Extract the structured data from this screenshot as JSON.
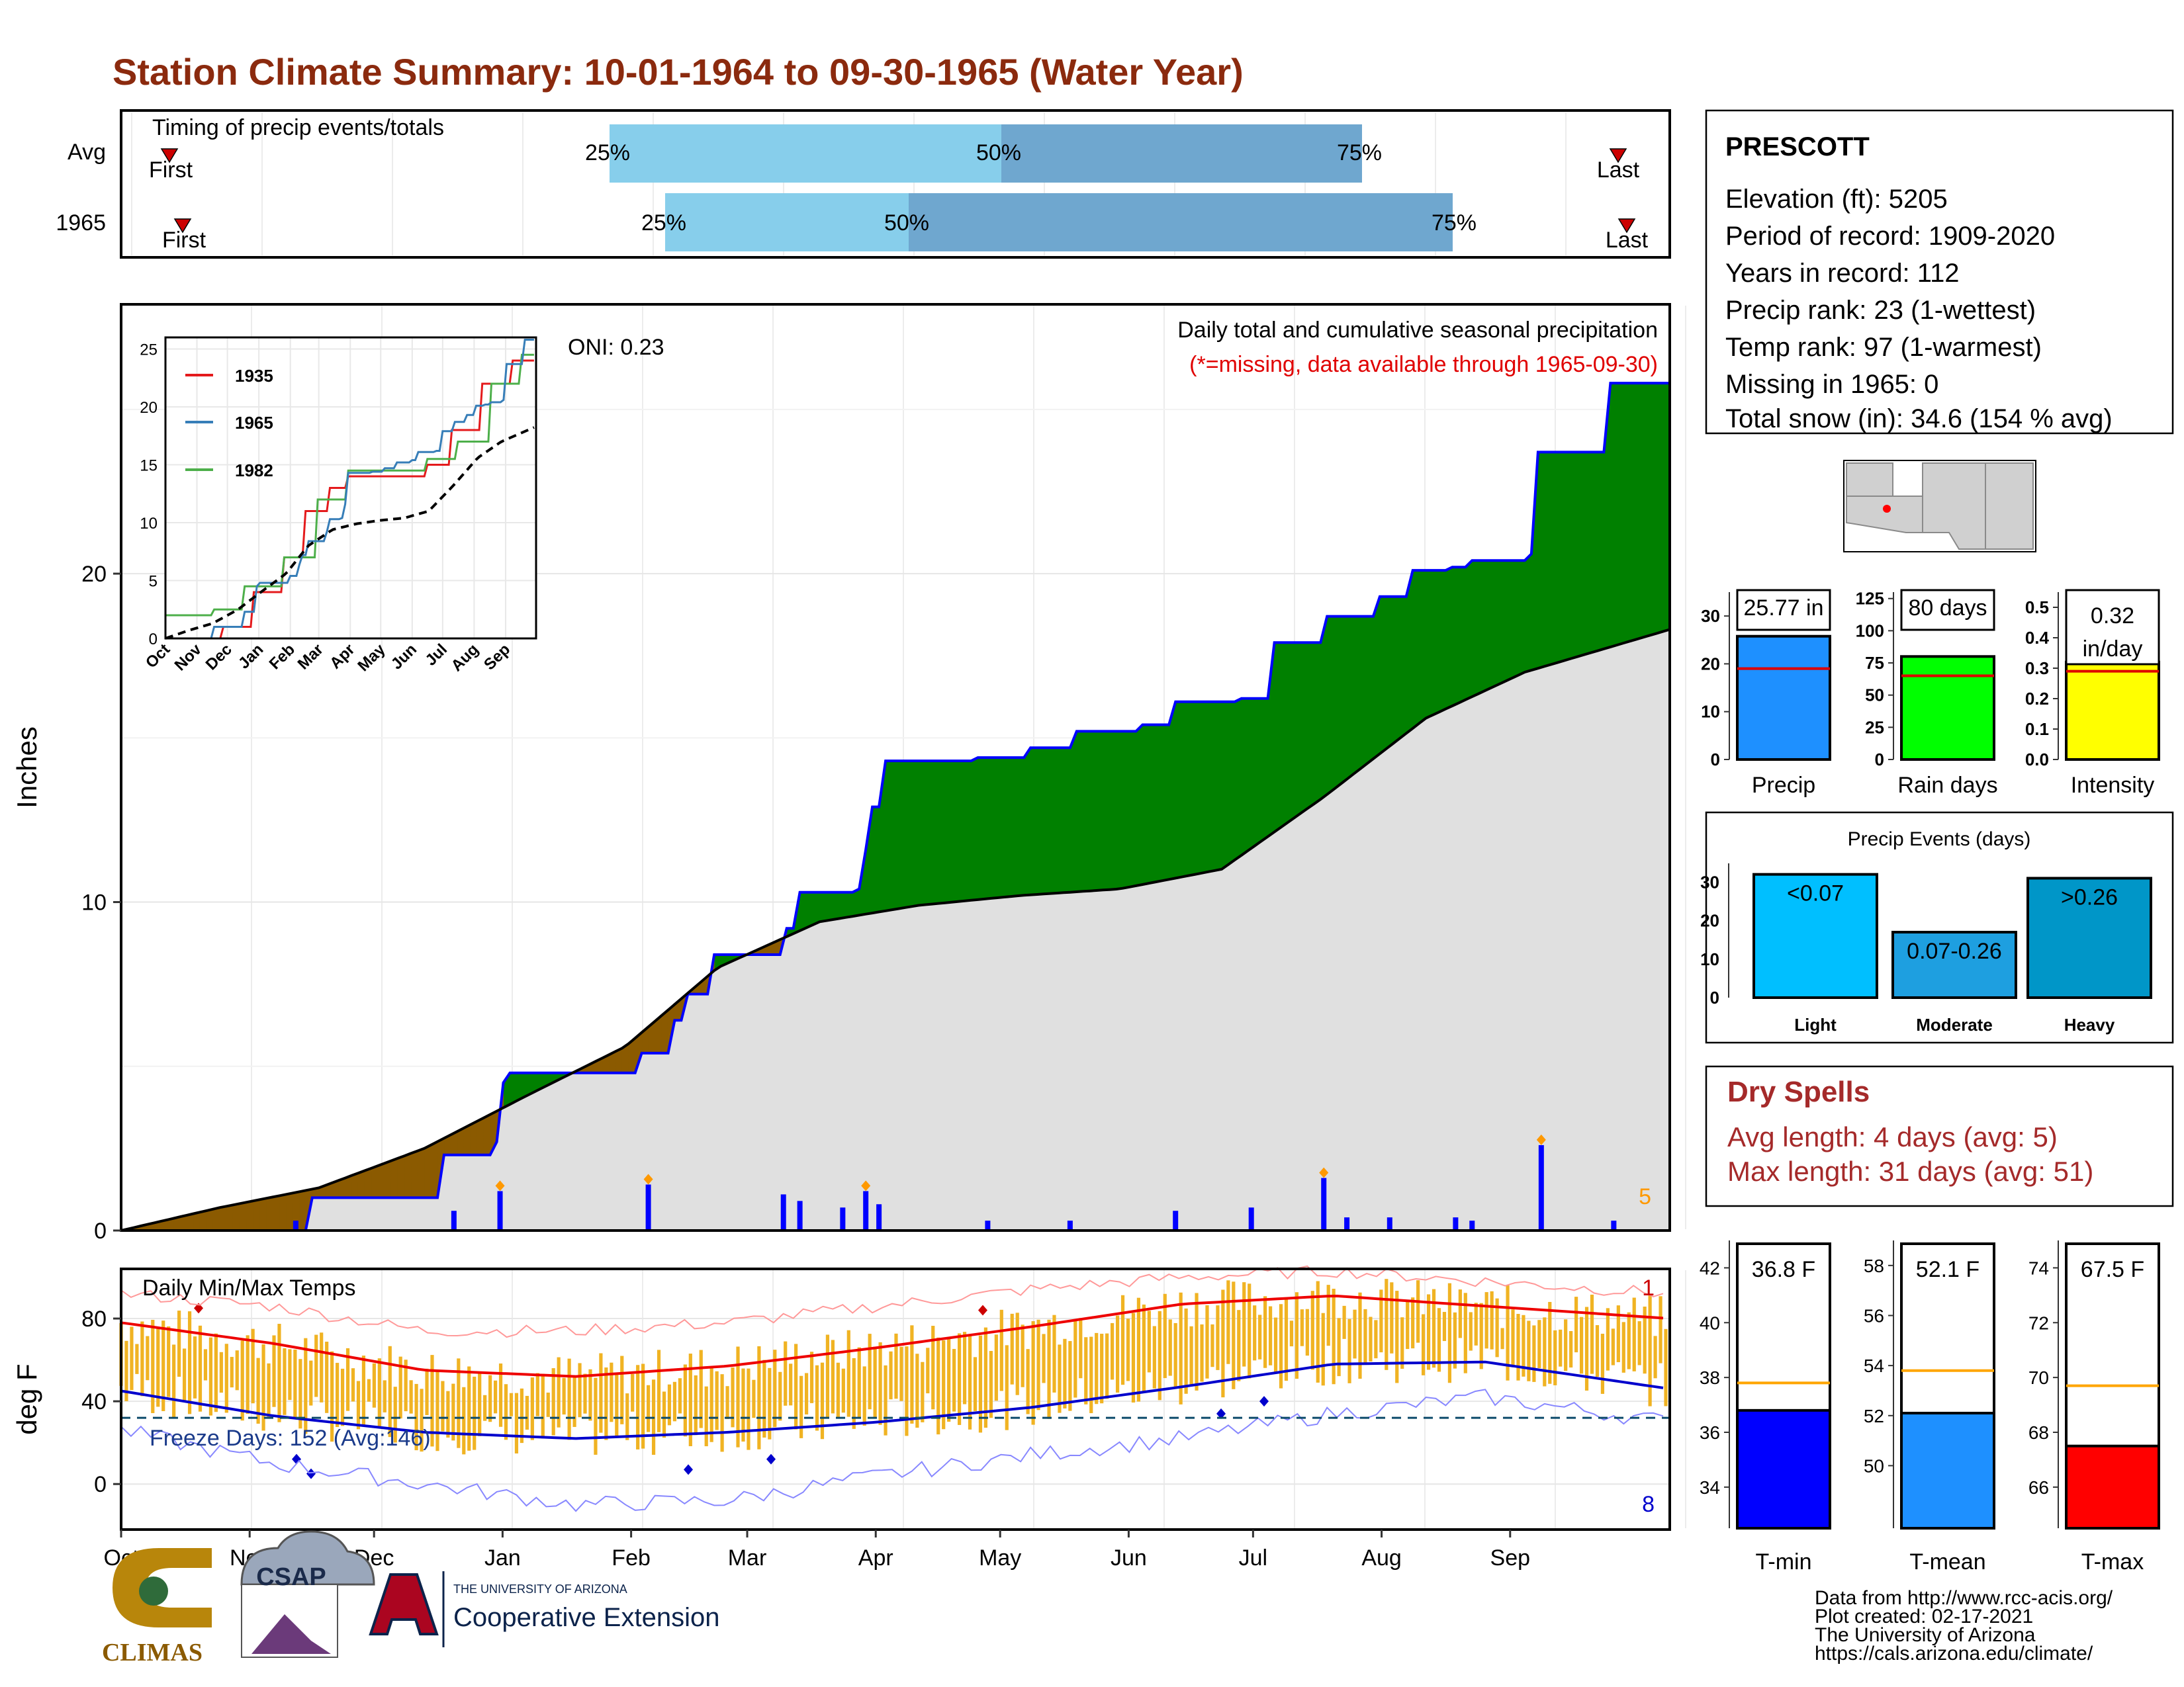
{
  "title": "Station Climate Summary: 10-01-1964 to 09-30-1965 (Water Year)",
  "timing": {
    "label": "Timing of precip events/totals",
    "rows": [
      {
        "name": "Avg",
        "first_label": "First",
        "last_label": "Last",
        "p25": "25%",
        "p50": "50%",
        "p75": "75%"
      },
      {
        "name": "1965",
        "first_label": "First",
        "last_label": "Last",
        "p25": "25%",
        "p50": "50%",
        "p75": "75%"
      }
    ],
    "colors": {
      "light": "#87ceeb",
      "dark": "#6fa7cf",
      "marker": "#cc0000"
    }
  },
  "precip_panel": {
    "ylabel": "Inches",
    "oni": "ONI: 0.23",
    "note1": "Daily total and cumulative seasonal precipitation",
    "note2": "(*=missing, data available through 1965-09-30)",
    "count_label": "5",
    "ytick_labels": [
      "0",
      "10",
      "20"
    ],
    "colors": {
      "above": "#008000",
      "below": "#8b5a00",
      "avg_fill": "#e0e0e0",
      "line": "#0000ff"
    }
  },
  "inset": {
    "ytick_labels": [
      "0",
      "5",
      "10",
      "15",
      "20",
      "25"
    ],
    "xtick_labels": [
      "Oct",
      "Nov",
      "Dec",
      "Jan",
      "Feb",
      "Mar",
      "Apr",
      "May",
      "Jun",
      "Jul",
      "Aug",
      "Sep"
    ],
    "legend": [
      {
        "name": "1935",
        "color": "#e41a1c"
      },
      {
        "name": "1965",
        "color": "#377eb8"
      },
      {
        "name": "1982",
        "color": "#4daf4a"
      }
    ]
  },
  "temp_panel": {
    "ylabel": "deg F",
    "label": "Daily Min/Max Temps",
    "freeze_label": "Freeze Days: 152 (Avg:146)",
    "record_high_count": "1",
    "record_low_count": "8",
    "ytick_labels": [
      "0",
      "40",
      "80"
    ],
    "xtick_labels": [
      "Oct",
      "Nov",
      "Dec",
      "Jan",
      "Feb",
      "Mar",
      "Apr",
      "May",
      "Jun",
      "Jul",
      "Aug",
      "Sep"
    ]
  },
  "station": {
    "name": "PRESCOTT",
    "lines": [
      "Elevation (ft): 5205",
      "Period of record: 1909-2020",
      "Years in record: 112",
      "Precip rank: 23 (1-wettest)",
      "Temp rank: 97 (1-warmest)",
      "Missing in 1965: 0",
      "Total snow (in): 34.6 (154 % avg)"
    ]
  },
  "summary_bars": [
    {
      "label": "Precip",
      "value_label": "25.77 in",
      "value": 25.77,
      "avg": 19,
      "ymax": 35,
      "ticks": [
        "0",
        "10",
        "20",
        "30"
      ],
      "color": "#1e90ff"
    },
    {
      "label": "Rain days",
      "value_label": "80 days",
      "value": 80,
      "avg": 65,
      "ymax": 130,
      "ticks": [
        "0",
        "25",
        "50",
        "75",
        "100",
        "125"
      ],
      "color": "#00ff00"
    },
    {
      "label": "Intensity",
      "value_label": "0.32 in/day",
      "value": 0.32,
      "avg": 0.29,
      "ymax": 0.55,
      "ticks": [
        "0.0",
        "0.1",
        "0.2",
        "0.3",
        "0.4",
        "0.5"
      ],
      "color": "#ffff00"
    }
  ],
  "events": {
    "title": "Precip Events (days)",
    "ticks": [
      "0",
      "10",
      "20",
      "30"
    ],
    "bars": [
      {
        "name": "Light",
        "label": "<0.07",
        "value": 32,
        "color": "#00bfff"
      },
      {
        "name": "Moderate",
        "label": "0.07-0.26",
        "value": 17,
        "color": "#1e9fe0"
      },
      {
        "name": "Heavy",
        "label": ">0.26",
        "value": 31,
        "color": "#0096c8"
      }
    ]
  },
  "dry_spells": {
    "title": "Dry Spells",
    "line1": "Avg length: 4 days (avg: 5)",
    "line2": "Max length: 31 days (avg: 51)"
  },
  "temp_bars": [
    {
      "label": "T-min",
      "value_label": "36.8 F",
      "value": 36.8,
      "avg": 37.8,
      "ymin": 32.5,
      "ymax": 43,
      "ticks": [
        "34",
        "36",
        "38",
        "40",
        "42"
      ],
      "color": "#0000ff"
    },
    {
      "label": "T-mean",
      "value_label": "52.1 F",
      "value": 52.1,
      "avg": 53.8,
      "ymin": 47.5,
      "ymax": 59,
      "ticks": [
        "50",
        "52",
        "54",
        "56",
        "58"
      ],
      "color": "#1e90ff"
    },
    {
      "label": "T-max",
      "value_label": "67.5 F",
      "value": 67.5,
      "avg": 69.7,
      "ymin": 64.5,
      "ymax": 75,
      "ticks": [
        "66",
        "68",
        "70",
        "72",
        "74"
      ],
      "color": "#ff0000"
    }
  ],
  "footer": {
    "credits": [
      "Data from http://www.rcc-acis.org/",
      "Plot created: 02-17-2021",
      "The University of Arizona",
      "https://cals.arizona.edu/climate/"
    ],
    "logo_climas": "CLIMAS",
    "logo_csap": "CSAP",
    "logo_ua_small": "THE UNIVERSITY OF ARIZONA",
    "logo_ua_big": "Cooperative Extension"
  },
  "chart_data": {
    "type": "area",
    "title": "Station Climate Summary: 10-01-1964 to 09-30-1965 (Water Year)",
    "ylabel": "Inches",
    "ylim": [
      0,
      27.5
    ],
    "x_months": [
      "Oct",
      "Nov",
      "Dec",
      "Jan",
      "Feb",
      "Mar",
      "Apr",
      "May",
      "Jun",
      "Jul",
      "Aug",
      "Sep"
    ],
    "cumulative_1965": [
      {
        "day": 0,
        "value": 0
      },
      {
        "day": 52,
        "value": 0
      },
      {
        "day": 58,
        "value": 1.0
      },
      {
        "day": 96,
        "value": 1.0
      },
      {
        "day": 98,
        "value": 2.3
      },
      {
        "day": 113,
        "value": 2.7
      },
      {
        "day": 115,
        "value": 4.5
      },
      {
        "day": 118,
        "value": 4.8
      },
      {
        "day": 140,
        "value": 4.8
      },
      {
        "day": 158,
        "value": 5.4
      },
      {
        "day": 168,
        "value": 6.4
      },
      {
        "day": 172,
        "value": 7.2
      },
      {
        "day": 178,
        "value": 7.2
      },
      {
        "day": 180,
        "value": 8.4
      },
      {
        "day": 200,
        "value": 8.4
      },
      {
        "day": 202,
        "value": 9.2
      },
      {
        "day": 205,
        "value": 10.3
      },
      {
        "day": 223,
        "value": 10.4
      },
      {
        "day": 225,
        "value": 11.6
      },
      {
        "day": 228,
        "value": 12.9
      },
      {
        "day": 231,
        "value": 14.3
      },
      {
        "day": 260,
        "value": 14.4
      },
      {
        "day": 275,
        "value": 14.7
      },
      {
        "day": 290,
        "value": 15.2
      },
      {
        "day": 310,
        "value": 15.4
      },
      {
        "day": 320,
        "value": 16.1
      },
      {
        "day": 340,
        "value": 16.2
      },
      {
        "day": 350,
        "value": 17.9
      },
      {
        "day": 365,
        "value": 18.7
      },
      {
        "day": 382,
        "value": 19.3
      },
      {
        "day": 392,
        "value": 20.1
      },
      {
        "day": 403,
        "value": 20.2
      },
      {
        "day": 410,
        "value": 20.4
      },
      {
        "day": 420,
        "value": 20.4
      },
      {
        "day": 428,
        "value": 20.6
      },
      {
        "day": 430,
        "value": 23.7
      },
      {
        "day": 450,
        "value": 23.7
      },
      {
        "day": 452,
        "value": 25.8
      },
      {
        "day": 470,
        "value": 25.8
      }
    ],
    "cumulative_avg": [
      {
        "day": 0,
        "value": 0
      },
      {
        "day": 30,
        "value": 0.7
      },
      {
        "day": 60,
        "value": 1.3
      },
      {
        "day": 92,
        "value": 2.5
      },
      {
        "day": 123,
        "value": 4.1
      },
      {
        "day": 153,
        "value": 5.6
      },
      {
        "day": 181,
        "value": 8.0
      },
      {
        "day": 212,
        "value": 9.4
      },
      {
        "day": 242,
        "value": 9.9
      },
      {
        "day": 273,
        "value": 10.2
      },
      {
        "day": 303,
        "value": 10.4
      },
      {
        "day": 334,
        "value": 11.0
      },
      {
        "day": 365,
        "value": 13.2
      },
      {
        "day": 396,
        "value": 15.6
      },
      {
        "day": 426,
        "value": 17.0
      },
      {
        "day": 470,
        "value": 18.3
      }
    ],
    "daily_precip": [
      {
        "day": 53,
        "value": 0.3
      },
      {
        "day": 101,
        "value": 0.6
      },
      {
        "day": 115,
        "value": 1.2
      },
      {
        "day": 160,
        "value": 1.4
      },
      {
        "day": 201,
        "value": 1.1
      },
      {
        "day": 206,
        "value": 0.9
      },
      {
        "day": 219,
        "value": 0.7
      },
      {
        "day": 226,
        "value": 1.2
      },
      {
        "day": 230,
        "value": 0.8
      },
      {
        "day": 263,
        "value": 0.3
      },
      {
        "day": 288,
        "value": 0.3
      },
      {
        "day": 320,
        "value": 0.6
      },
      {
        "day": 343,
        "value": 0.7
      },
      {
        "day": 365,
        "value": 1.6
      },
      {
        "day": 372,
        "value": 0.4
      },
      {
        "day": 385,
        "value": 0.4
      },
      {
        "day": 405,
        "value": 0.4
      },
      {
        "day": 410,
        "value": 0.3
      },
      {
        "day": 431,
        "value": 2.6
      },
      {
        "day": 453,
        "value": 0.3
      }
    ],
    "temps": {
      "ylabel": "deg F",
      "ylim": [
        -22,
        104
      ],
      "avg_max": [
        {
          "day": 0,
          "value": 78
        },
        {
          "day": 46,
          "value": 68
        },
        {
          "day": 92,
          "value": 55
        },
        {
          "day": 138,
          "value": 52
        },
        {
          "day": 184,
          "value": 57
        },
        {
          "day": 230,
          "value": 66
        },
        {
          "day": 276,
          "value": 76
        },
        {
          "day": 322,
          "value": 87
        },
        {
          "day": 368,
          "value": 91
        },
        {
          "day": 414,
          "value": 86
        },
        {
          "day": 470,
          "value": 80
        }
      ],
      "avg_min": [
        {
          "day": 0,
          "value": 45
        },
        {
          "day": 46,
          "value": 33
        },
        {
          "day": 92,
          "value": 25
        },
        {
          "day": 138,
          "value": 22
        },
        {
          "day": 184,
          "value": 25
        },
        {
          "day": 230,
          "value": 30
        },
        {
          "day": 276,
          "value": 37
        },
        {
          "day": 322,
          "value": 47
        },
        {
          "day": 368,
          "value": 58
        },
        {
          "day": 414,
          "value": 59
        },
        {
          "day": 470,
          "value": 46
        }
      ],
      "record_max": [
        {
          "day": 0,
          "value": 92
        },
        {
          "day": 46,
          "value": 86
        },
        {
          "day": 92,
          "value": 74
        },
        {
          "day": 138,
          "value": 74
        },
        {
          "day": 184,
          "value": 78
        },
        {
          "day": 230,
          "value": 86
        },
        {
          "day": 276,
          "value": 94
        },
        {
          "day": 322,
          "value": 100
        },
        {
          "day": 368,
          "value": 103
        },
        {
          "day": 414,
          "value": 98
        },
        {
          "day": 470,
          "value": 92
        }
      ],
      "record_min": [
        {
          "day": 0,
          "value": 26
        },
        {
          "day": 46,
          "value": 10
        },
        {
          "day": 92,
          "value": 0
        },
        {
          "day": 138,
          "value": -10
        },
        {
          "day": 184,
          "value": -8
        },
        {
          "day": 230,
          "value": 4
        },
        {
          "day": 276,
          "value": 14
        },
        {
          "day": 322,
          "value": 22
        },
        {
          "day": 368,
          "value": 34
        },
        {
          "day": 414,
          "value": 42
        },
        {
          "day": 470,
          "value": 30
        }
      ],
      "freeze_line": 32
    }
  }
}
